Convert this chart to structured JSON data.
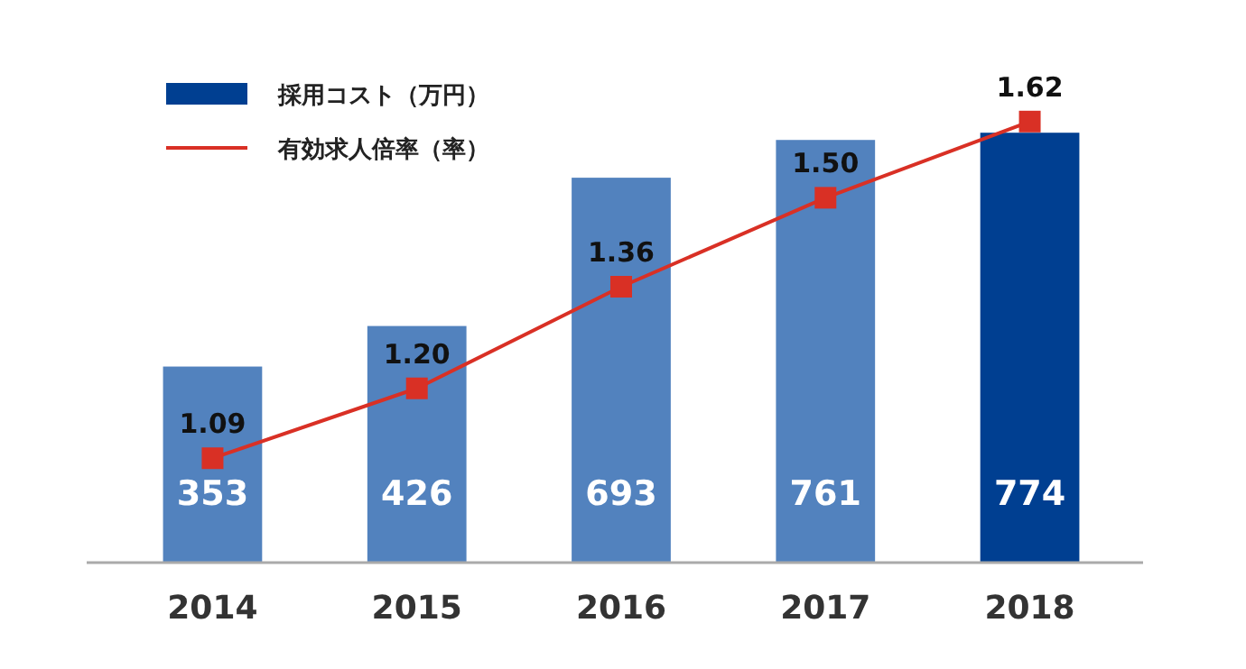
{
  "chart_data": {
    "type": "bar",
    "categories": [
      "2014",
      "2015",
      "2016",
      "2017",
      "2018"
    ],
    "series": [
      {
        "name": "採用コスト（万円）",
        "colors": [
          "#5282be",
          "#5282be",
          "#5282be",
          "#5282be",
          "#003f91"
        ],
        "values": [
          353,
          426,
          693,
          761,
          774
        ]
      },
      {
        "name": "有効求人倍率（率）",
        "type": "line",
        "axis": "y2",
        "color": "#d93025",
        "marker": "square",
        "values": [
          1.09,
          1.2,
          1.36,
          1.5,
          1.62
        ],
        "value_labels": [
          "1.09",
          "1.20",
          "1.36",
          "1.50",
          "1.62"
        ]
      }
    ],
    "tick_labels": "x",
    "data_labels": true,
    "legend": "top left"
  }
}
